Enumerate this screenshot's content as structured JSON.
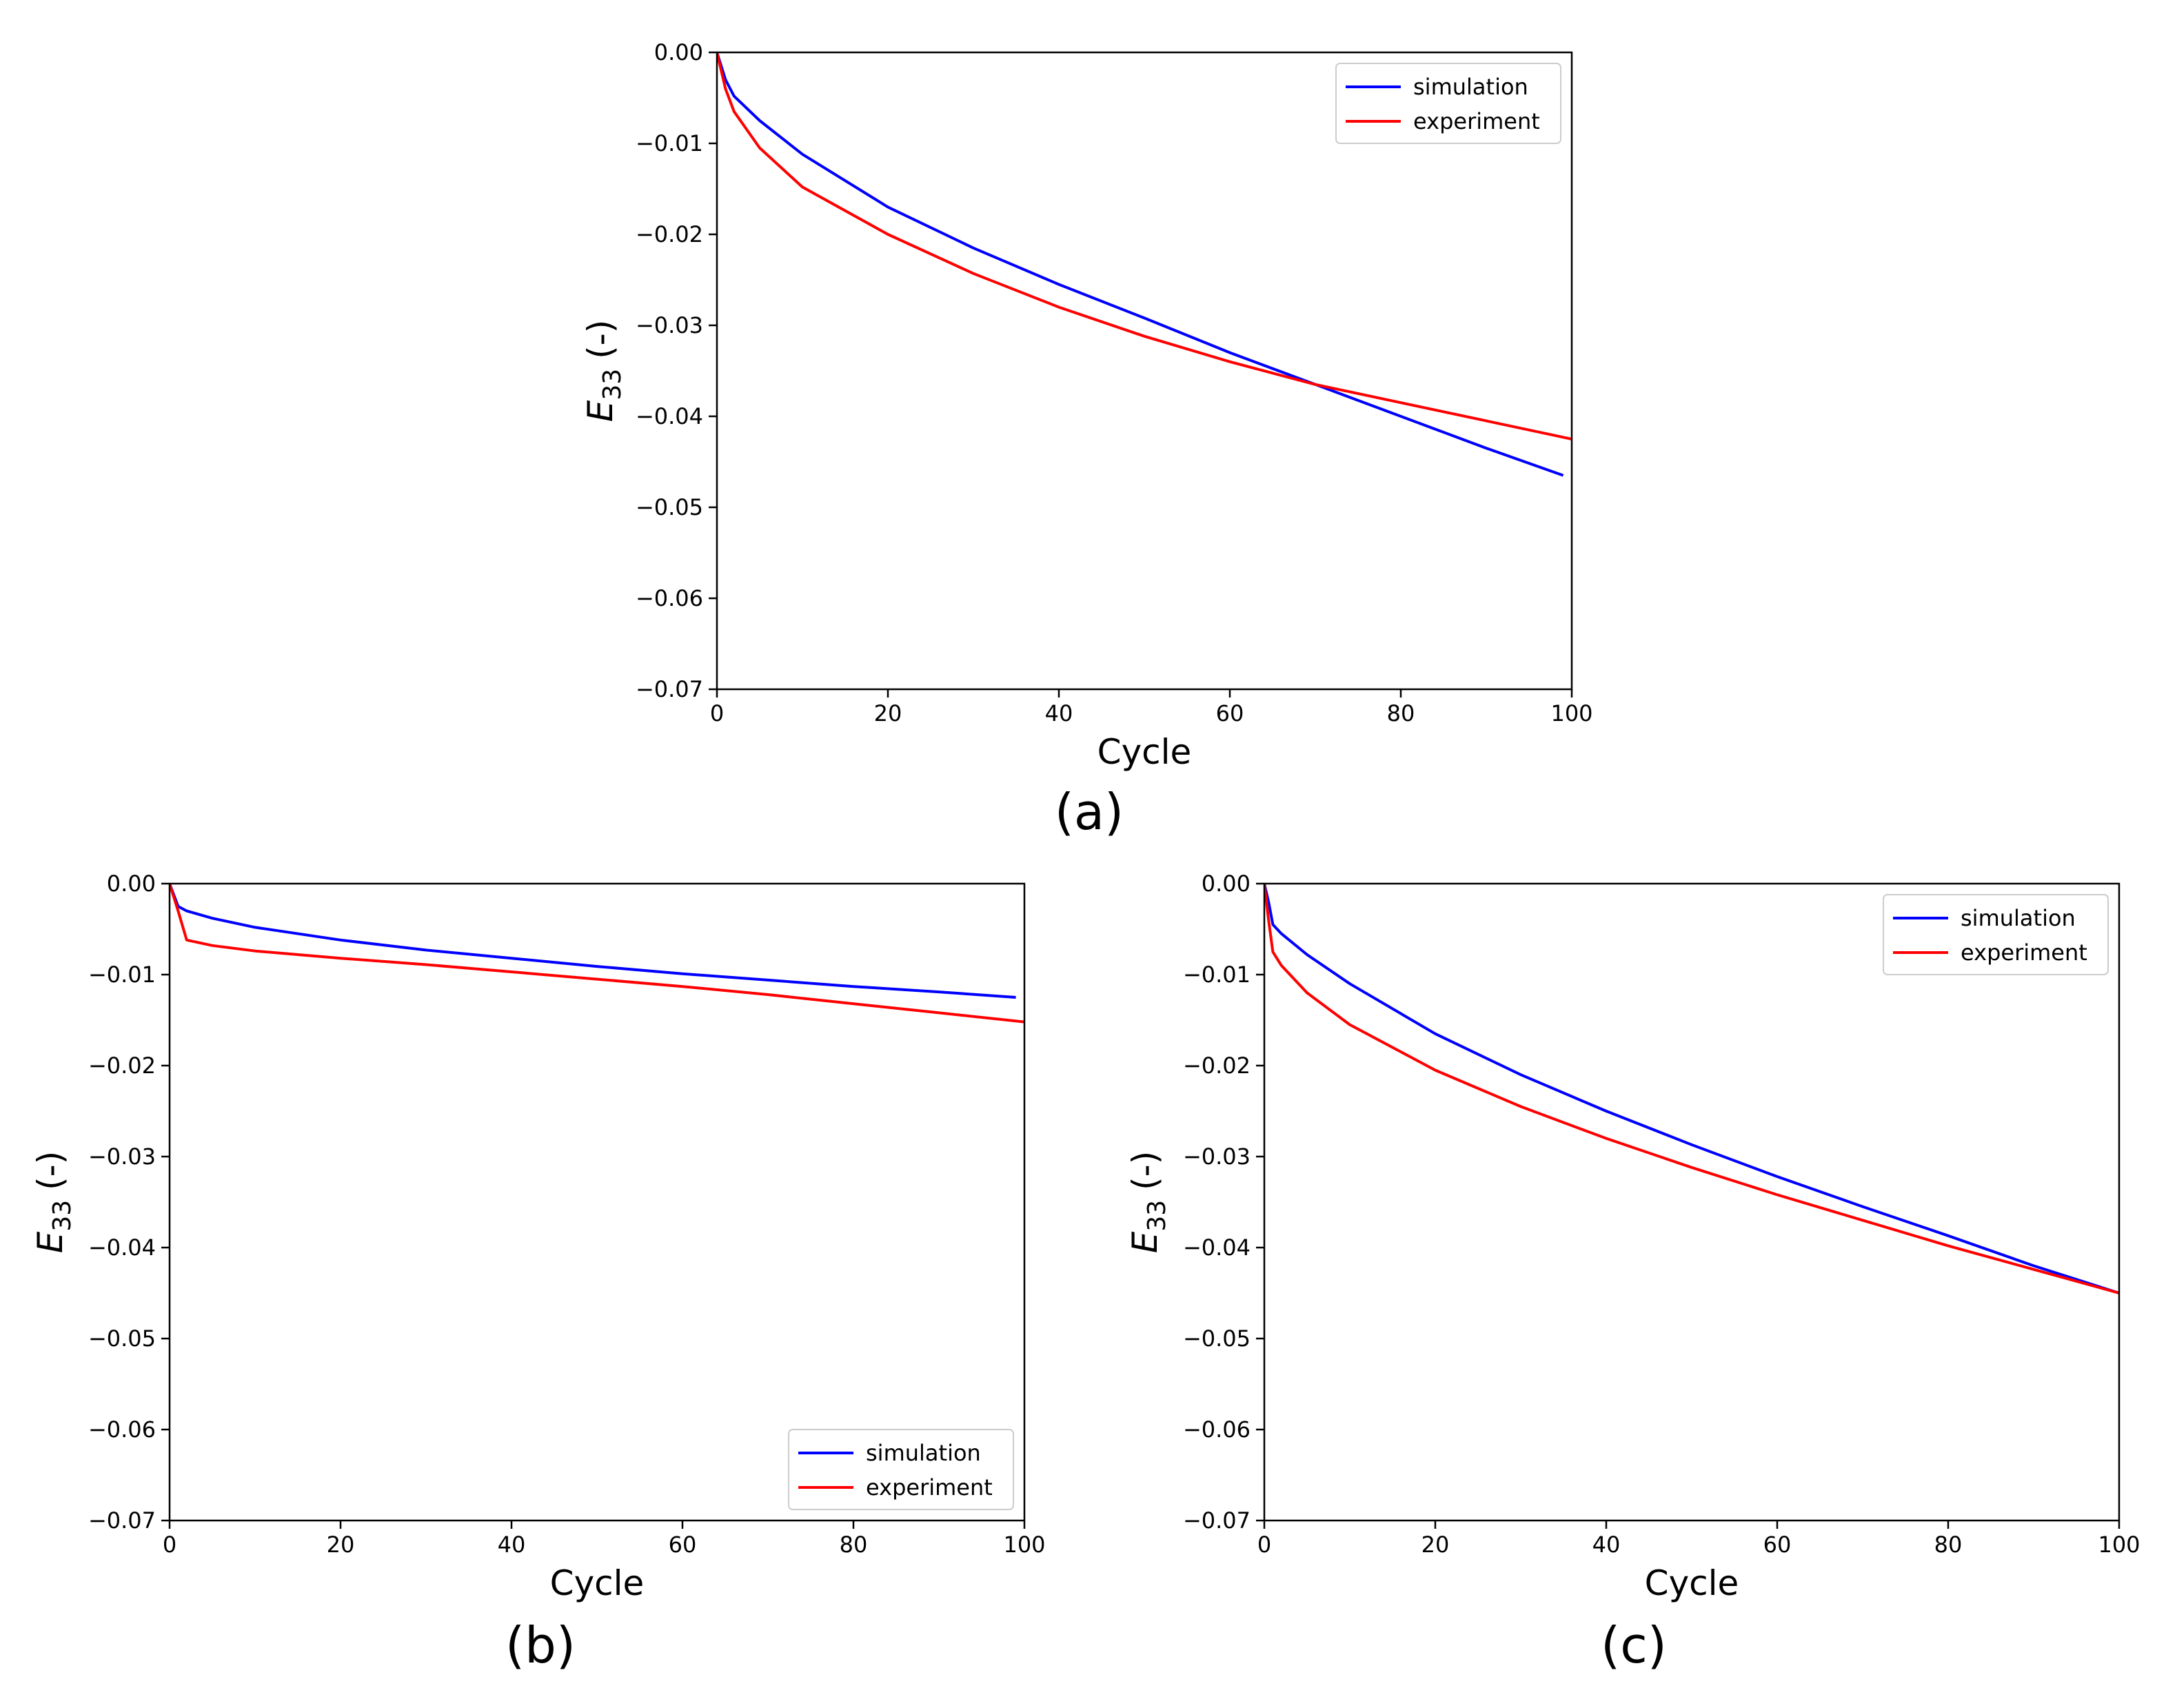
{
  "figure": {
    "colors": {
      "simulation": "#0000ff",
      "experiment": "#ff0000",
      "axis": "#000000"
    }
  },
  "chart_data": [
    {
      "id": "a",
      "type": "line",
      "panel_label": "(a)",
      "xlabel": "Cycle",
      "ylabel_main": "E",
      "ylabel_sub": "33",
      "ylabel_suffix": "(-)",
      "xlim": [
        0,
        100
      ],
      "ylim": [
        -0.07,
        0.0
      ],
      "xticks": [
        0,
        20,
        40,
        60,
        80,
        100
      ],
      "xtick_labels": [
        "0",
        "20",
        "40",
        "60",
        "80",
        "100"
      ],
      "yticks": [
        0.0,
        -0.01,
        -0.02,
        -0.03,
        -0.04,
        -0.05,
        -0.06,
        -0.07
      ],
      "ytick_labels": [
        "0.00",
        "−0.01",
        "−0.02",
        "−0.03",
        "−0.04",
        "−0.05",
        "−0.06",
        "−0.07"
      ],
      "legend_loc": "top-right",
      "series": [
        {
          "name": "simulation",
          "color": "#0000ff",
          "x": [
            0,
            1,
            2,
            5,
            10,
            20,
            30,
            40,
            50,
            60,
            70,
            80,
            90,
            99
          ],
          "y": [
            0,
            -0.003,
            -0.0048,
            -0.0075,
            -0.0112,
            -0.017,
            -0.0215,
            -0.0255,
            -0.0292,
            -0.033,
            -0.0365,
            -0.04,
            -0.0435,
            -0.0465
          ]
        },
        {
          "name": "experiment",
          "color": "#ff0000",
          "x": [
            0,
            1,
            2,
            5,
            10,
            20,
            30,
            40,
            50,
            60,
            70,
            80,
            90,
            100
          ],
          "y": [
            0,
            -0.004,
            -0.0065,
            -0.0105,
            -0.0148,
            -0.02,
            -0.0243,
            -0.028,
            -0.0312,
            -0.034,
            -0.0365,
            -0.0385,
            -0.0405,
            -0.0425
          ]
        }
      ]
    },
    {
      "id": "b",
      "type": "line",
      "panel_label": "(b)",
      "xlabel": "Cycle",
      "ylabel_main": "E",
      "ylabel_sub": "33",
      "ylabel_suffix": "(-)",
      "xlim": [
        0,
        100
      ],
      "ylim": [
        -0.07,
        0.0
      ],
      "xticks": [
        0,
        20,
        40,
        60,
        80,
        100
      ],
      "xtick_labels": [
        "0",
        "20",
        "40",
        "60",
        "80",
        "100"
      ],
      "yticks": [
        0.0,
        -0.01,
        -0.02,
        -0.03,
        -0.04,
        -0.05,
        -0.06,
        -0.07
      ],
      "ytick_labels": [
        "0.00",
        "−0.01",
        "−0.02",
        "−0.03",
        "−0.04",
        "−0.05",
        "−0.06",
        "−0.07"
      ],
      "legend_loc": "bottom-right",
      "series": [
        {
          "name": "simulation",
          "color": "#0000ff",
          "x": [
            0,
            1,
            2,
            5,
            10,
            20,
            30,
            40,
            50,
            60,
            70,
            80,
            90,
            99
          ],
          "y": [
            0,
            -0.0025,
            -0.003,
            -0.0038,
            -0.0048,
            -0.0062,
            -0.0073,
            -0.0082,
            -0.0091,
            -0.0099,
            -0.0106,
            -0.0113,
            -0.0119,
            -0.0125
          ]
        },
        {
          "name": "experiment",
          "color": "#ff0000",
          "x": [
            0,
            1,
            2,
            5,
            10,
            20,
            30,
            40,
            50,
            60,
            70,
            80,
            90,
            100
          ],
          "y": [
            0,
            -0.003,
            -0.0062,
            -0.0068,
            -0.0074,
            -0.0082,
            -0.0089,
            -0.0097,
            -0.0105,
            -0.0113,
            -0.0122,
            -0.0132,
            -0.0142,
            -0.0152
          ]
        }
      ]
    },
    {
      "id": "c",
      "type": "line",
      "panel_label": "(c)",
      "xlabel": "Cycle",
      "ylabel_main": "E",
      "ylabel_sub": "33",
      "ylabel_suffix": "(-)",
      "xlim": [
        0,
        100
      ],
      "ylim": [
        -0.07,
        0.0
      ],
      "xticks": [
        0,
        20,
        40,
        60,
        80,
        100
      ],
      "xtick_labels": [
        "0",
        "20",
        "40",
        "60",
        "80",
        "100"
      ],
      "yticks": [
        0.0,
        -0.01,
        -0.02,
        -0.03,
        -0.04,
        -0.05,
        -0.06,
        -0.07
      ],
      "ytick_labels": [
        "0.00",
        "−0.01",
        "−0.02",
        "−0.03",
        "−0.04",
        "−0.05",
        "−0.06",
        "−0.07"
      ],
      "legend_loc": "top-right",
      "series": [
        {
          "name": "simulation",
          "color": "#0000ff",
          "x": [
            0,
            0.5,
            1,
            2,
            5,
            10,
            20,
            30,
            40,
            50,
            60,
            70,
            80,
            90,
            100
          ],
          "y": [
            0,
            -0.002,
            -0.0045,
            -0.0055,
            -0.0078,
            -0.011,
            -0.0165,
            -0.021,
            -0.025,
            -0.0287,
            -0.0322,
            -0.0355,
            -0.0387,
            -0.042,
            -0.045
          ]
        },
        {
          "name": "experiment",
          "color": "#ff0000",
          "x": [
            0,
            0.5,
            1,
            2,
            5,
            10,
            20,
            30,
            40,
            50,
            60,
            70,
            80,
            90,
            100
          ],
          "y": [
            0,
            -0.004,
            -0.0075,
            -0.009,
            -0.012,
            -0.0155,
            -0.0205,
            -0.0245,
            -0.028,
            -0.0312,
            -0.0342,
            -0.037,
            -0.0398,
            -0.0424,
            -0.045
          ]
        }
      ]
    }
  ]
}
